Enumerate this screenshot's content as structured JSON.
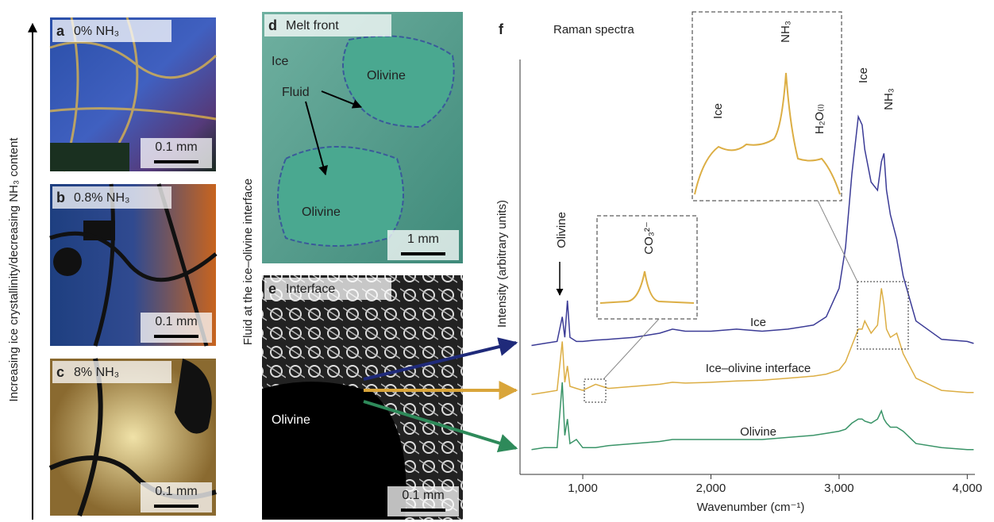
{
  "left_axis_label": "Increasing ice crystallinity/decreasing NH₃ content",
  "middle_axis_label": "Fluid at the ice–olivine interface",
  "panels": [
    {
      "letter": "a",
      "label": "0% NH₃",
      "scale": "0.1 mm"
    },
    {
      "letter": "b",
      "label": "0.8% NH₃",
      "scale": "0.1 mm"
    },
    {
      "letter": "c",
      "label": "8% NH₃",
      "scale": "0.1 mm"
    },
    {
      "letter": "d",
      "label": "Melt front",
      "scale": "1 mm",
      "annotations": [
        "Ice",
        "Fluid",
        "Olivine",
        "Olivine"
      ]
    },
    {
      "letter": "e",
      "label": "Interface",
      "scale": "0.1 mm",
      "annotations": [
        "Olivine"
      ]
    }
  ],
  "chart_data": {
    "type": "line",
    "letter": "f",
    "title": "Raman spectra",
    "x_label": "Wavenumber (cm⁻¹)",
    "y_label": "Intensity (arbitrary units)",
    "xlim": [
      560,
      4060
    ],
    "ylim": [
      0,
      100
    ],
    "xticks": [
      {
        "value": 1000,
        "label": "1,000"
      },
      {
        "value": 2000,
        "label": "2,000"
      },
      {
        "value": 3000,
        "label": "3,000"
      },
      {
        "value": 4000,
        "label": "4,000"
      }
    ],
    "x": [
      600,
      700,
      800,
      840,
      860,
      880,
      900,
      950,
      1000,
      1100,
      1200,
      1400,
      1600,
      1700,
      1800,
      2000,
      2200,
      2400,
      2600,
      2800,
      2900,
      3000,
      3050,
      3100,
      3150,
      3180,
      3200,
      3250,
      3300,
      3330,
      3350,
      3370,
      3400,
      3450,
      3500,
      3600,
      3800,
      4000,
      4050
    ],
    "series": [
      {
        "name": "Ice",
        "color": "#3b3b96",
        "values": [
          30,
          30.5,
          31,
          37,
          32,
          41,
          32,
          31,
          31,
          31.3,
          31.5,
          32,
          33,
          34,
          33.5,
          33.5,
          34,
          33.5,
          34,
          35,
          37,
          44,
          54,
          72,
          86,
          84,
          78,
          70,
          68,
          75,
          77,
          68,
          62,
          56,
          47,
          36,
          31.5,
          31,
          30.5
        ]
      },
      {
        "name": "Ice–olivine interface",
        "color": "#dcae44",
        "values": [
          18,
          18.5,
          19,
          31,
          21,
          25,
          20,
          19.5,
          19,
          20.5,
          19.5,
          20,
          20.5,
          21,
          20.8,
          21,
          21.3,
          21.5,
          22,
          22.5,
          23,
          24,
          26,
          30,
          34,
          34,
          36,
          33,
          35,
          44,
          40,
          34,
          32,
          33,
          28,
          22,
          19,
          18.5,
          18.5
        ]
      },
      {
        "name": "Olivine",
        "color": "#3a9468",
        "values": [
          4.5,
          5,
          5,
          21,
          8,
          12,
          6,
          7,
          5,
          5,
          5.5,
          6,
          6.5,
          7,
          7,
          7,
          7,
          7,
          7.5,
          8,
          8.5,
          9,
          9.5,
          11,
          12,
          12,
          11.5,
          11,
          12,
          14,
          12,
          11,
          10,
          10,
          9,
          6,
          5,
          4.5,
          4.5
        ]
      }
    ],
    "annotations": [
      "Olivine",
      "CO₃²⁻",
      "Ice",
      "NH₃",
      "H₂O₍ₗ₎",
      "Ice",
      "NH₃"
    ]
  }
}
